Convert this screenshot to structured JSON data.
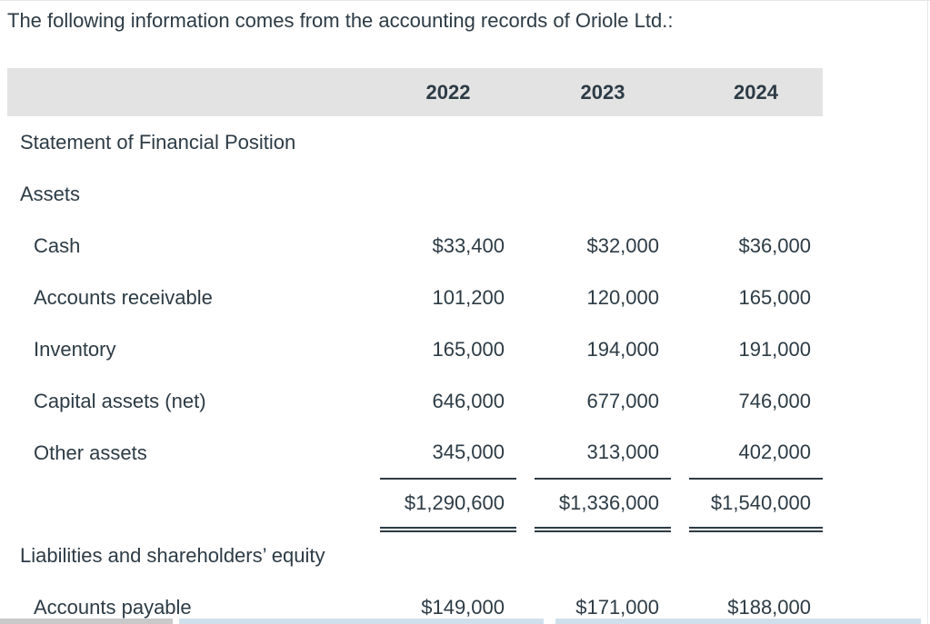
{
  "page": {
    "intro_text": "The following information comes from the accounting records of Oriole Ltd.:"
  },
  "table": {
    "columns": [
      "2022",
      "2023",
      "2024"
    ],
    "rows": [
      {
        "label": "Statement of Financial Position",
        "type": "section",
        "values": [
          "",
          "",
          ""
        ]
      },
      {
        "label": "Assets",
        "type": "section",
        "values": [
          "",
          "",
          ""
        ]
      },
      {
        "label": "Cash",
        "type": "item",
        "values": [
          "$33,400",
          "$32,000",
          "$36,000"
        ]
      },
      {
        "label": "Accounts receivable",
        "type": "item",
        "values": [
          "101,200",
          "120,000",
          "165,000"
        ]
      },
      {
        "label": "Inventory",
        "type": "item",
        "values": [
          "165,000",
          "194,000",
          "191,000"
        ]
      },
      {
        "label": "Capital assets (net)",
        "type": "item",
        "values": [
          "646,000",
          "677,000",
          "746,000"
        ]
      },
      {
        "label": "Other assets",
        "type": "item",
        "values": [
          "345,000",
          "313,000",
          "402,000"
        ],
        "underline": "single"
      },
      {
        "label": "",
        "type": "total",
        "values": [
          "$1,290,600",
          "$1,336,000",
          "$1,540,000"
        ],
        "underline": "double"
      },
      {
        "label": "Liabilities and shareholders’ equity",
        "type": "section",
        "values": [
          "",
          "",
          ""
        ]
      },
      {
        "label": "Accounts payable",
        "type": "item",
        "values": [
          "$149,000",
          "$171,000",
          "$188,000"
        ]
      }
    ]
  },
  "colors": {
    "text": "#2d3b45",
    "header_bg": "#e3e3e3",
    "rule": "#2d3b45",
    "partial_row_gray": "#c9c9c9",
    "partial_row_blue": "#cfe0ec"
  }
}
